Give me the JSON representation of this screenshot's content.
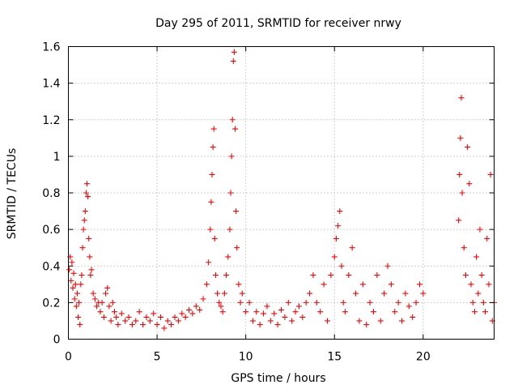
{
  "chart_data": {
    "type": "scatter",
    "title": "Day 295 of 2011, SRMTID for receiver nrwy",
    "xlabel": "GPS time / hours",
    "ylabel": "SRMTID / TECUs",
    "xlim": [
      0,
      24
    ],
    "ylim": [
      0,
      1.6
    ],
    "xticks": [
      0,
      5,
      10,
      15,
      20
    ],
    "xtick_labels": [
      "0",
      "5",
      "10",
      "15",
      "20"
    ],
    "yticks": [
      0,
      0.2,
      0.4,
      0.6,
      0.8,
      1.0,
      1.2,
      1.4,
      1.6
    ],
    "ytick_labels": [
      "0",
      "0.2",
      "0.4",
      "0.6",
      "0.8",
      "1",
      "1.2",
      "1.4",
      "1.6"
    ],
    "grid": true,
    "marker": "plus",
    "series": [
      {
        "name": "SRMTID",
        "color": "#ff0000",
        "points": [
          [
            0.05,
            0.38
          ],
          [
            0.1,
            0.45
          ],
          [
            0.15,
            0.32
          ],
          [
            0.2,
            0.42
          ],
          [
            0.25,
            0.28
          ],
          [
            0.3,
            0.36
          ],
          [
            0.35,
            0.22
          ],
          [
            0.4,
            0.3
          ],
          [
            0.45,
            0.18
          ],
          [
            0.5,
            0.25
          ],
          [
            0.55,
            0.12
          ],
          [
            0.6,
            0.2
          ],
          [
            0.65,
            0.08
          ],
          [
            0.7,
            0.3
          ],
          [
            0.75,
            0.35
          ],
          [
            0.8,
            0.5
          ],
          [
            0.85,
            0.6
          ],
          [
            0.9,
            0.65
          ],
          [
            0.95,
            0.7
          ],
          [
            1.0,
            0.8
          ],
          [
            1.05,
            0.85
          ],
          [
            1.1,
            0.78
          ],
          [
            1.15,
            0.55
          ],
          [
            1.2,
            0.45
          ],
          [
            1.25,
            0.35
          ],
          [
            1.3,
            0.38
          ],
          [
            1.4,
            0.25
          ],
          [
            1.5,
            0.22
          ],
          [
            1.6,
            0.18
          ],
          [
            1.7,
            0.2
          ],
          [
            1.8,
            0.15
          ],
          [
            1.9,
            0.2
          ],
          [
            2.0,
            0.12
          ],
          [
            2.1,
            0.25
          ],
          [
            2.2,
            0.28
          ],
          [
            2.3,
            0.18
          ],
          [
            2.4,
            0.1
          ],
          [
            2.5,
            0.2
          ],
          [
            2.6,
            0.15
          ],
          [
            2.7,
            0.12
          ],
          [
            2.8,
            0.08
          ],
          [
            3.0,
            0.14
          ],
          [
            3.2,
            0.1
          ],
          [
            3.4,
            0.12
          ],
          [
            3.6,
            0.08
          ],
          [
            3.8,
            0.1
          ],
          [
            4.0,
            0.15
          ],
          [
            4.2,
            0.08
          ],
          [
            4.4,
            0.12
          ],
          [
            4.6,
            0.1
          ],
          [
            4.8,
            0.14
          ],
          [
            5.0,
            0.08
          ],
          [
            5.2,
            0.12
          ],
          [
            5.4,
            0.06
          ],
          [
            5.6,
            0.1
          ],
          [
            5.8,
            0.08
          ],
          [
            6.0,
            0.12
          ],
          [
            6.2,
            0.1
          ],
          [
            6.4,
            0.14
          ],
          [
            6.6,
            0.12
          ],
          [
            6.8,
            0.16
          ],
          [
            7.0,
            0.14
          ],
          [
            7.2,
            0.18
          ],
          [
            7.4,
            0.16
          ],
          [
            7.6,
            0.22
          ],
          [
            7.8,
            0.3
          ],
          [
            7.9,
            0.42
          ],
          [
            8.0,
            0.6
          ],
          [
            8.05,
            0.75
          ],
          [
            8.1,
            0.9
          ],
          [
            8.15,
            1.05
          ],
          [
            8.2,
            1.15
          ],
          [
            8.25,
            0.55
          ],
          [
            8.3,
            0.35
          ],
          [
            8.4,
            0.25
          ],
          [
            8.5,
            0.2
          ],
          [
            8.6,
            0.18
          ],
          [
            8.7,
            0.15
          ],
          [
            8.8,
            0.25
          ],
          [
            8.9,
            0.35
          ],
          [
            9.0,
            0.45
          ],
          [
            9.1,
            0.6
          ],
          [
            9.15,
            0.8
          ],
          [
            9.2,
            1.0
          ],
          [
            9.25,
            1.2
          ],
          [
            9.3,
            1.52
          ],
          [
            9.35,
            1.57
          ],
          [
            9.4,
            1.15
          ],
          [
            9.45,
            0.7
          ],
          [
            9.5,
            0.5
          ],
          [
            9.6,
            0.3
          ],
          [
            9.7,
            0.2
          ],
          [
            9.8,
            0.25
          ],
          [
            10.0,
            0.15
          ],
          [
            10.2,
            0.2
          ],
          [
            10.4,
            0.1
          ],
          [
            10.6,
            0.15
          ],
          [
            10.8,
            0.08
          ],
          [
            11.0,
            0.14
          ],
          [
            11.2,
            0.18
          ],
          [
            11.4,
            0.1
          ],
          [
            11.6,
            0.14
          ],
          [
            11.8,
            0.08
          ],
          [
            12.0,
            0.16
          ],
          [
            12.2,
            0.12
          ],
          [
            12.4,
            0.2
          ],
          [
            12.6,
            0.1
          ],
          [
            12.8,
            0.15
          ],
          [
            13.0,
            0.18
          ],
          [
            13.2,
            0.12
          ],
          [
            13.4,
            0.2
          ],
          [
            13.6,
            0.25
          ],
          [
            13.8,
            0.35
          ],
          [
            14.0,
            0.2
          ],
          [
            14.2,
            0.15
          ],
          [
            14.4,
            0.3
          ],
          [
            14.6,
            0.1
          ],
          [
            14.8,
            0.35
          ],
          [
            15.0,
            0.45
          ],
          [
            15.1,
            0.55
          ],
          [
            15.2,
            0.62
          ],
          [
            15.3,
            0.7
          ],
          [
            15.4,
            0.4
          ],
          [
            15.5,
            0.2
          ],
          [
            15.6,
            0.15
          ],
          [
            15.8,
            0.35
          ],
          [
            16.0,
            0.5
          ],
          [
            16.2,
            0.25
          ],
          [
            16.4,
            0.1
          ],
          [
            16.6,
            0.3
          ],
          [
            16.8,
            0.08
          ],
          [
            17.0,
            0.2
          ],
          [
            17.2,
            0.15
          ],
          [
            17.4,
            0.35
          ],
          [
            17.6,
            0.1
          ],
          [
            17.8,
            0.25
          ],
          [
            18.0,
            0.4
          ],
          [
            18.2,
            0.3
          ],
          [
            18.4,
            0.15
          ],
          [
            18.6,
            0.2
          ],
          [
            18.8,
            0.1
          ],
          [
            19.0,
            0.25
          ],
          [
            19.2,
            0.18
          ],
          [
            19.4,
            0.12
          ],
          [
            19.6,
            0.2
          ],
          [
            19.8,
            0.3
          ],
          [
            20.0,
            0.25
          ],
          [
            22.0,
            0.65
          ],
          [
            22.05,
            0.9
          ],
          [
            22.1,
            1.1
          ],
          [
            22.15,
            1.32
          ],
          [
            22.2,
            0.8
          ],
          [
            22.3,
            0.5
          ],
          [
            22.4,
            0.35
          ],
          [
            22.5,
            1.05
          ],
          [
            22.6,
            0.85
          ],
          [
            22.7,
            0.3
          ],
          [
            22.8,
            0.2
          ],
          [
            22.9,
            0.15
          ],
          [
            23.0,
            0.45
          ],
          [
            23.1,
            0.25
          ],
          [
            23.2,
            0.6
          ],
          [
            23.3,
            0.35
          ],
          [
            23.4,
            0.2
          ],
          [
            23.5,
            0.15
          ],
          [
            23.6,
            0.55
          ],
          [
            23.7,
            0.3
          ],
          [
            23.8,
            0.9
          ],
          [
            23.9,
            0.1
          ],
          [
            24.0,
            0.2
          ]
        ]
      }
    ]
  }
}
